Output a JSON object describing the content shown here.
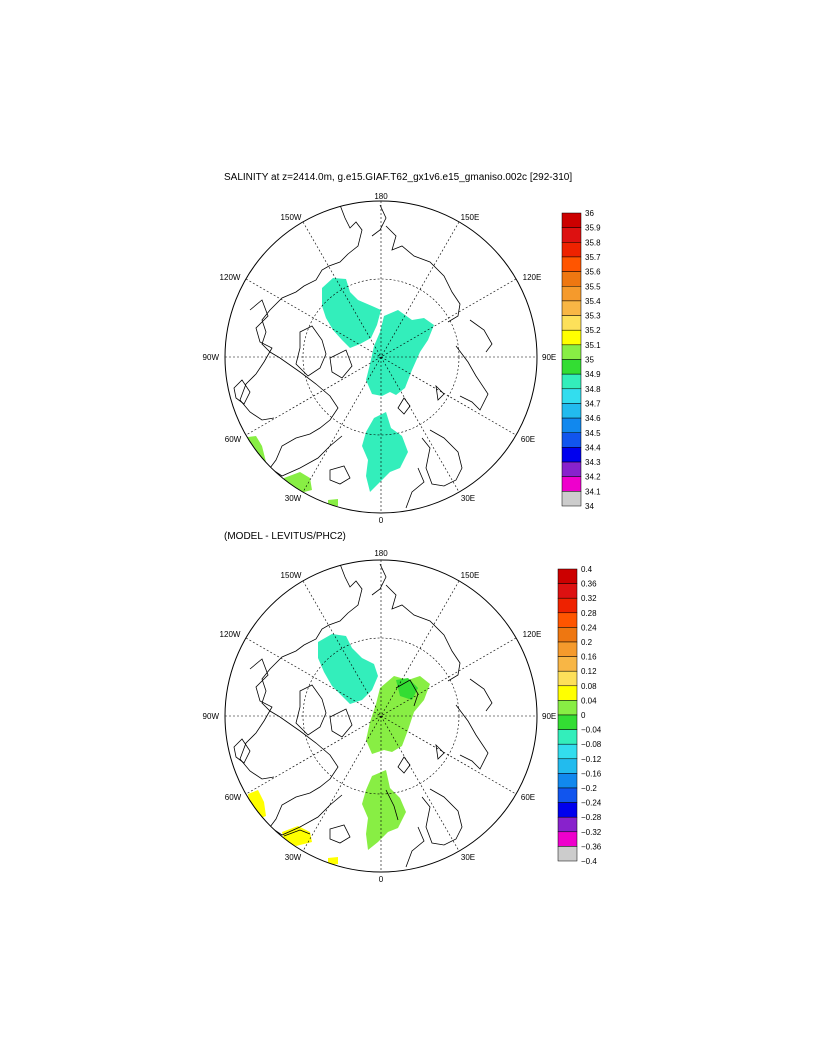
{
  "panels": [
    {
      "title": "SALINITY at z=2414.0m, g.e15.GIAF.T62_gx1v6.e15_gmaniso.002c [292-310]",
      "lon_labels": [
        "180",
        "150E",
        "120E",
        "90E",
        "60E",
        "30E",
        "0",
        "30W",
        "60W",
        "90W",
        "120W",
        "150W"
      ],
      "colorbar": {
        "labels": [
          "36",
          "35.9",
          "35.8",
          "35.7",
          "35.6",
          "35.5",
          "35.4",
          "35.3",
          "35.2",
          "35.1",
          "35",
          "34.9",
          "34.8",
          "34.7",
          "34.6",
          "34.5",
          "34.4",
          "34.3",
          "34.2",
          "34.1",
          "34"
        ],
        "colors": [
          "#cc0000",
          "#dd1111",
          "#ee2200",
          "#ff5500",
          "#ee7711",
          "#f59a2c",
          "#f8b645",
          "#fde05a",
          "#ffff00",
          "#88ee44",
          "#33dd33",
          "#33eebb",
          "#33ddee",
          "#22bbee",
          "#1188ee",
          "#1155ee",
          "#0000ee",
          "#8822cc",
          "#ee00cc",
          "#cccccc",
          "#777777"
        ]
      }
    },
    {
      "title": "(MODEL - LEVITUS/PHC2)",
      "lon_labels": [
        "180",
        "150E",
        "120E",
        "90E",
        "60E",
        "30E",
        "0",
        "30W",
        "60W",
        "90W",
        "120W",
        "150W"
      ],
      "colorbar": {
        "labels": [
          "0.4",
          "0.36",
          "0.32",
          "0.28",
          "0.24",
          "0.2",
          "0.16",
          "0.12",
          "0.08",
          "0.04",
          "0",
          "−0.04",
          "−0.08",
          "−0.12",
          "−0.16",
          "−0.2",
          "−0.24",
          "−0.28",
          "−0.32",
          "−0.36",
          "−0.4"
        ],
        "colors": [
          "#cc0000",
          "#dd1111",
          "#ee2200",
          "#ff5500",
          "#ee7711",
          "#f59a2c",
          "#f8b645",
          "#fde05a",
          "#ffff00",
          "#88ee44",
          "#33dd33",
          "#33eebb",
          "#33ddee",
          "#22bbee",
          "#1188ee",
          "#1155ee",
          "#0000ee",
          "#8822cc",
          "#ee00cc",
          "#cccccc",
          "#777777"
        ]
      }
    }
  ]
}
